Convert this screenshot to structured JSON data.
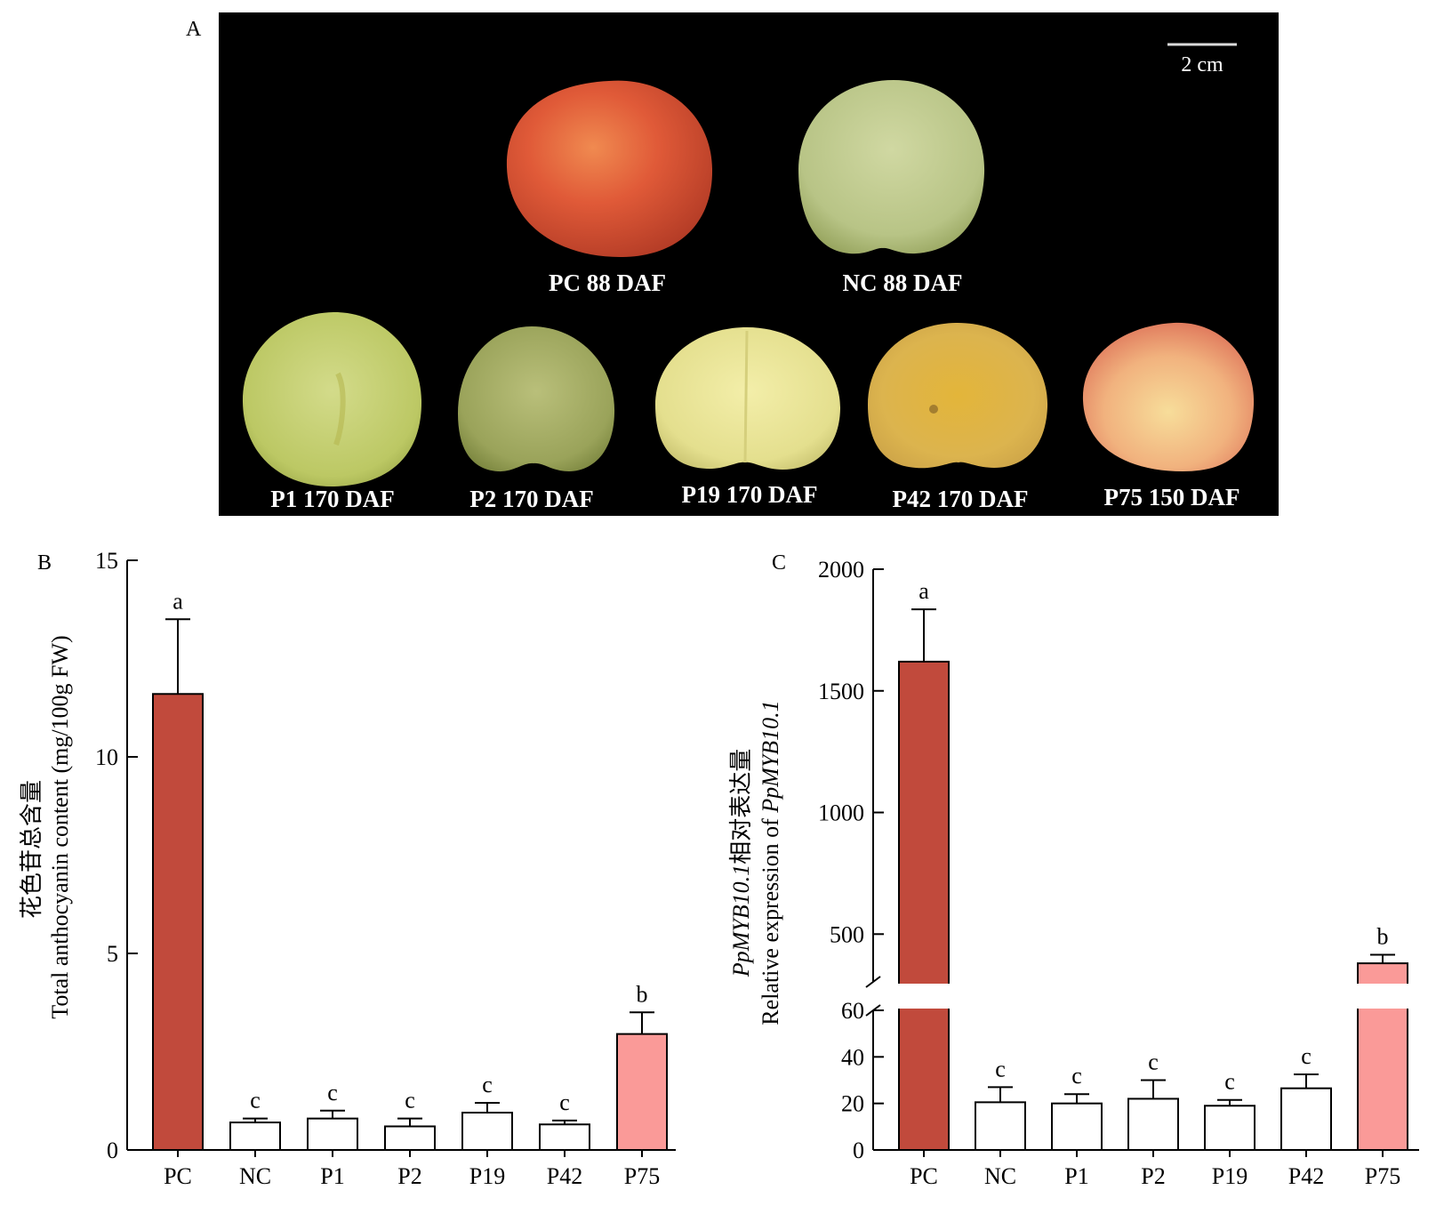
{
  "panel_a": {
    "label": "A",
    "scale_bar": "2 cm",
    "fruits": [
      {
        "label": "PC 88 DAF",
        "skin": "red"
      },
      {
        "label": "NC 88 DAF",
        "skin": "green"
      },
      {
        "label": "P1 170 DAF",
        "skin": "green"
      },
      {
        "label": "P2 170 DAF",
        "skin": "dark-green"
      },
      {
        "label": "P19 170 DAF",
        "skin": "pale-yellow"
      },
      {
        "label": "P42 170 DAF",
        "skin": "yellow"
      },
      {
        "label": "P75 150 DAF",
        "skin": "red-blush"
      }
    ]
  },
  "colors": {
    "pc_bar": "#c14a3c",
    "p75_bar": "#fa9a98",
    "other_bar": "#ffffff",
    "panel_a_background": "#000000"
  },
  "chart_data": [
    {
      "panel": "B",
      "type": "bar",
      "ylabel_cn": "花色苷总含量",
      "ylabel_en": "Total anthocyanin content (mg/100g FW)",
      "categories": [
        "PC",
        "NC",
        "P1",
        "P2",
        "P19",
        "P42",
        "P75"
      ],
      "values": [
        11.6,
        0.7,
        0.8,
        0.6,
        0.95,
        0.65,
        2.95
      ],
      "errors": [
        1.9,
        0.1,
        0.2,
        0.2,
        0.25,
        0.1,
        0.55
      ],
      "significance": [
        "a",
        "c",
        "c",
        "c",
        "c",
        "c",
        "b"
      ],
      "ylim": [
        0,
        15
      ],
      "yticks": [
        "0",
        "5",
        "10",
        "15"
      ],
      "grid": false
    },
    {
      "panel": "C",
      "type": "bar",
      "ylabel_cn": "相对表达量",
      "ylabel_gene": "PpMYB10.1",
      "ylabel_en": "Relative expression of ",
      "categories": [
        "PC",
        "NC",
        "P1",
        "P2",
        "P19",
        "P42",
        "P75"
      ],
      "values": [
        1620,
        20.5,
        20,
        22,
        19,
        26.5,
        380
      ],
      "errors": [
        215,
        6.5,
        4,
        8,
        2.5,
        6,
        35
      ],
      "significance": [
        "a",
        "c",
        "c",
        "c",
        "c",
        "c",
        "b"
      ],
      "y_axis_break": [
        60,
        300
      ],
      "ylim": [
        0,
        2000
      ],
      "yticks_lower": [
        "0",
        "20",
        "40",
        "60"
      ],
      "yticks_upper": [
        "500",
        "1000",
        "1500",
        "2000"
      ],
      "grid": false
    }
  ]
}
